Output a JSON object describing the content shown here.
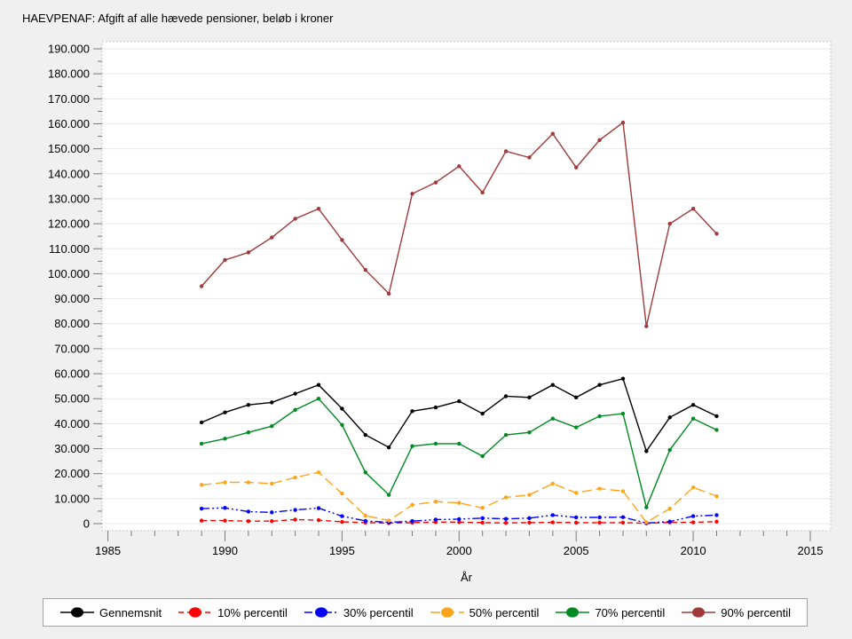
{
  "chart_data": {
    "type": "line",
    "title": "HAEVPENAF: Afgift af alle hævede pensioner, beløb i kroner",
    "xlabel": "År",
    "ylabel": "",
    "grid": true,
    "legend_position": "bottom",
    "xlim": [
      1985,
      2015
    ],
    "ylim": [
      0,
      190000
    ],
    "x_major_ticks": [
      1985,
      1990,
      1995,
      2000,
      2005,
      2010,
      2015
    ],
    "x_minor_tick_step_years": 1,
    "y_tick_step": 10000,
    "y_tick_labels": [
      "0",
      "10.000",
      "20.000",
      "30.000",
      "40.000",
      "50.000",
      "60.000",
      "70.000",
      "80.000",
      "90.000",
      "100.000",
      "110.000",
      "120.000",
      "130.000",
      "140.000",
      "150.000",
      "160.000",
      "170.000",
      "180.000",
      "190.000"
    ],
    "x": [
      1989,
      1990,
      1991,
      1992,
      1993,
      1994,
      1995,
      1996,
      1997,
      1998,
      1999,
      2000,
      2001,
      2002,
      2003,
      2004,
      2005,
      2006,
      2007,
      2008,
      2009,
      2010,
      2011
    ],
    "series": [
      {
        "name": "Gennemsnit",
        "color": "#000000",
        "line_style": "solid",
        "values": [
          40500,
          44500,
          47500,
          48500,
          52000,
          55500,
          46000,
          35500,
          30500,
          45000,
          46500,
          49000,
          44000,
          51000,
          50500,
          55500,
          50500,
          55500,
          58000,
          29000,
          42500,
          47500,
          43000
        ]
      },
      {
        "name": "10% percentil",
        "color": "#ff0000",
        "line_style": "dash",
        "values": [
          1200,
          1200,
          1000,
          1000,
          1600,
          1400,
          700,
          400,
          200,
          400,
          600,
          600,
          400,
          300,
          400,
          500,
          400,
          400,
          400,
          100,
          500,
          500,
          800
        ]
      },
      {
        "name": "30% percentil",
        "color": "#0000ff",
        "line_style": "dash-dot-dot",
        "values": [
          6000,
          6300,
          4800,
          4500,
          5500,
          6200,
          3000,
          1100,
          500,
          1000,
          1600,
          1800,
          2200,
          1900,
          2200,
          3400,
          2500,
          2500,
          2600,
          200,
          800,
          3000,
          3400
        ]
      },
      {
        "name": "50% percentil",
        "color": "#ffa319",
        "line_style": "long-dash",
        "values": [
          15500,
          16500,
          16500,
          16000,
          18500,
          20500,
          12000,
          3200,
          1200,
          7500,
          8800,
          8300,
          6300,
          10500,
          11500,
          16000,
          12300,
          14000,
          13000,
          500,
          6000,
          14500,
          11000
        ]
      },
      {
        "name": "70% percentil",
        "color": "#008a22",
        "line_style": "solid",
        "values": [
          32000,
          34000,
          36500,
          39000,
          45500,
          50000,
          39500,
          20500,
          11500,
          31000,
          32000,
          32000,
          27000,
          35500,
          36500,
          42000,
          38500,
          43000,
          44000,
          6500,
          29500,
          42000,
          37500
        ]
      },
      {
        "name": "90% percentil",
        "color": "#a13939",
        "line_style": "solid",
        "values": [
          95000,
          105500,
          108500,
          114500,
          122000,
          126000,
          113500,
          101500,
          92000,
          132000,
          136500,
          143000,
          132500,
          149000,
          146500,
          156000,
          142500,
          153500,
          160500,
          79000,
          120000,
          126000,
          116000
        ]
      }
    ]
  }
}
